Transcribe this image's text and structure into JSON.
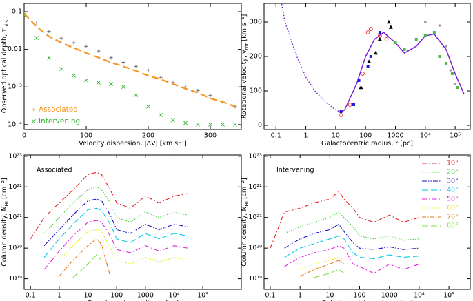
{
  "chart_data": [
    {
      "type": "line",
      "xlabel": [
        "Velocity dispersion, |ΔV| [km s⁻¹]"
      ],
      "ylabel": [
        "Observed optical depth, τ",
        "obs"
      ],
      "xlim": [
        0,
        350
      ],
      "ylim": [
        7.4e-05,
        0.166
      ],
      "ylog": true,
      "xticks": [
        0,
        100,
        200,
        300
      ],
      "yticks": [
        {
          "value": 0.0001,
          "label": "10⁻⁴"
        },
        {
          "value": 0.001,
          "label": "10⁻³"
        },
        0.01,
        0.1
      ],
      "legend": "lower left",
      "x": [
        0,
        20,
        40,
        60,
        80,
        100,
        120,
        140,
        160,
        180,
        200,
        220,
        240,
        260,
        280,
        300,
        320,
        340
      ],
      "series": [
        {
          "name": "Associated",
          "color": "#f7941d",
          "marker": "+",
          "marker_color": "#666666",
          "values": [
            0.09,
            0.05,
            0.03,
            0.02,
            0.015,
            0.012,
            0.009,
            0.006,
            0.0045,
            0.0035,
            0.0028,
            0.0018,
            0.0013,
            0.001,
            0.0008,
            0.0006,
            0.0004,
            0.0003
          ]
        },
        {
          "name": "Intervening",
          "color": "#2db52d",
          "marker": "x",
          "values": [
            0.08,
            0.02,
            0.006,
            0.003,
            0.002,
            0.0015,
            0.0013,
            0.0012,
            0.001,
            0.0006,
            0.0003,
            0.00018,
            0.00013,
            0.00011,
            0.0001,
            0.0001,
            0.0001,
            0.0001
          ]
        },
        {
          "color": "#f7941d",
          "dash": "10,5",
          "width": 2.2,
          "values": [
            0.09,
            0.04,
            0.022,
            0.015,
            0.011,
            0.008,
            0.006,
            0.0045,
            0.0035,
            0.0027,
            0.002,
            0.0016,
            0.0012,
            0.0009,
            0.0007,
            0.0005,
            0.0004,
            0.0003
          ]
        }
      ]
    },
    {
      "type": "line",
      "xlabel": [
        "Galactocentric radius, r [pc]"
      ],
      "ylabel": [
        "Rotational velocity, v",
        "rot",
        " [km s⁻¹]"
      ],
      "xlim": [
        0.04,
        320000
      ],
      "xlog": true,
      "ylim": [
        -12,
        354
      ],
      "xticks": [
        0.1,
        1,
        10,
        100,
        1000,
        {
          "value": 10000,
          "label": "10⁴"
        },
        {
          "value": 100000,
          "label": "10⁵"
        }
      ],
      "yticks": [
        0,
        100,
        200,
        300
      ],
      "series": [
        {
          "color": "#7a1fd6",
          "dash": "1.5,2.5",
          "width": 1.5,
          "x": [
            0.15,
            0.2,
            0.5,
            1,
            2,
            5,
            10,
            15
          ],
          "values": [
            360,
            300,
            200,
            140,
            100,
            65,
            45,
            38
          ]
        },
        {
          "color": "#7a1fd6",
          "width": 1.5,
          "x": [
            15,
            20,
            50,
            100,
            200,
            400,
            1000,
            2000,
            5000,
            10000,
            20000,
            50000,
            100000,
            200000
          ],
          "values": [
            38,
            45,
            120,
            200,
            250,
            270,
            240,
            210,
            230,
            260,
            265,
            220,
            150,
            90
          ]
        },
        {
          "color": "#000000",
          "marker": "triangle",
          "x": [
            70,
            130,
            220,
            300,
            600,
            700
          ],
          "values": [
            110,
            185,
            210,
            250,
            300,
            285
          ]
        },
        {
          "color": "#1a1ae0",
          "marker": "square",
          "x": [
            15,
            40,
            60,
            120,
            150,
            300
          ],
          "values": [
            40,
            60,
            130,
            170,
            200,
            270
          ]
        },
        {
          "color": "#e82020",
          "marker": "circle",
          "x": [
            15,
            30,
            80,
            120,
            150,
            300,
            500
          ],
          "values": [
            30,
            60,
            150,
            270,
            280,
            260,
            250
          ]
        },
        {
          "color": "#4cb84c",
          "marker": "square",
          "x": [
            1000,
            2000,
            5000,
            10000,
            20000,
            30000,
            50000,
            80000,
            120000
          ],
          "values": [
            240,
            220,
            250,
            260,
            270,
            200,
            180,
            150,
            110
          ]
        },
        {
          "color": "#999999",
          "marker": "dot",
          "x": [
            10000,
            30000,
            50000,
            70000,
            100000
          ],
          "values": [
            300,
            290,
            230,
            160,
            120
          ]
        }
      ]
    },
    {
      "type": "line",
      "annotation": "Associated",
      "xlabel": [
        "Galactocentric radius, r [pc]"
      ],
      "ylabel": [
        "Column density, N",
        "HI",
        " [cm⁻²]"
      ],
      "xlim": [
        0.06,
        2200000
      ],
      "xlog": true,
      "ylim": [
        4.5e+18,
        1.1e+23
      ],
      "ylog": true,
      "xticks": [
        0.1,
        1,
        10,
        100,
        1000,
        {
          "value": 10000,
          "label": "10⁴"
        },
        {
          "value": 100000,
          "label": "10⁵"
        }
      ],
      "yticks": [
        {
          "value": 1e+19,
          "label": "10¹⁹"
        },
        {
          "value": 1e+20,
          "label": "10²⁰"
        },
        {
          "value": 1e+21,
          "label": "10²¹"
        },
        {
          "value": 1e+22,
          "label": "10²²"
        },
        {
          "value": 1e+23,
          "label": "10²³"
        }
      ],
      "x": [
        0.1,
        0.3,
        1,
        3,
        10,
        20,
        30,
        60,
        100,
        300,
        1000,
        3000,
        10000,
        30000
      ],
      "series": [
        {
          "color": "#e82020",
          "dash": "7,3,1.5,3",
          "values": [
            2e+20,
            1e+21,
            3e+21,
            8e+21,
            2.5e+22,
            3e+22,
            2.5e+22,
            8e+21,
            3e+21,
            2e+21,
            5e+21,
            3e+21,
            5e+21,
            6e+21
          ]
        },
        {
          "color": "#33cc33",
          "dash": "1.5,2",
          "values": [
            null,
            3e+20,
            1e+21,
            3e+21,
            8e+21,
            1e+22,
            8e+21,
            3e+21,
            1e+21,
            7e+20,
            1.5e+21,
            1e+21,
            1.5e+21,
            1.2e+21
          ]
        },
        {
          "color": "#1010c0",
          "dash": "7,2,1.5,2,1.5,2",
          "values": [
            null,
            1.2e+20,
            4e+20,
            1.2e+21,
            3.5e+21,
            4e+21,
            3.5e+21,
            1.2e+21,
            4e+20,
            3e+20,
            6e+20,
            4e+20,
            6e+20,
            5e+20
          ]
        },
        {
          "color": "#00c8e8",
          "dash": "9,4",
          "values": [
            null,
            5e+19,
            2e+20,
            6e+20,
            1.8e+21,
            2e+21,
            1.7e+21,
            6e+20,
            2e+20,
            1.5e+20,
            3e+20,
            2e+20,
            3e+20,
            2.5e+20
          ]
        },
        {
          "color": "#e020e0",
          "dash": "7,3,1.5,3",
          "values": [
            null,
            2e+19,
            8e+19,
            2.5e+20,
            7e+20,
            8e+20,
            7e+20,
            2.5e+20,
            9e+19,
            7e+19,
            1.2e+20,
            8e+19,
            1.2e+20,
            1e+20
          ]
        },
        {
          "color": "#e6e600",
          "dash": "1.5,2",
          "values": [
            null,
            null,
            4e+19,
            1.2e+20,
            3.5e+20,
            4e+20,
            3.5e+20,
            1e+20,
            4e+19,
            3e+19,
            5e+19,
            3.5e+19,
            5e+19,
            4e+19
          ]
        },
        {
          "color": "#e07a10",
          "dash": "6,2,1.5,2",
          "values": [
            null,
            null,
            1.2e+19,
            4e+19,
            1.2e+20,
            2e+20,
            1.3e+20,
            1.2e+19,
            null,
            null,
            null,
            null,
            null,
            null
          ]
        },
        {
          "color": "#80e040",
          "dash": "9,4",
          "values": [
            null,
            null,
            null,
            1.1e+19,
            3e+19,
            6e+19,
            4e+19,
            null,
            null,
            null,
            null,
            null,
            null,
            null
          ]
        }
      ]
    },
    {
      "type": "line",
      "annotation": "Intervening",
      "xlabel": [
        "Galactocentric radius, r [pc]"
      ],
      "ylabel": [
        "Column density, N",
        "HI",
        " [cm⁻²]"
      ],
      "xlim": [
        0.062,
        520000
      ],
      "xlog": true,
      "ylim": [
        4.5e+18,
        1.1e+23
      ],
      "ylog": true,
      "xticks": [
        0.1,
        1,
        10,
        100,
        1000,
        {
          "value": 10000,
          "label": "10⁴"
        },
        {
          "value": 100000,
          "label": "10⁵"
        }
      ],
      "yticks": [
        {
          "value": 1e+19,
          "label": "10¹⁹"
        },
        {
          "value": 1e+20,
          "label": "10²⁰"
        },
        {
          "value": 1e+21,
          "label": "10²¹"
        },
        {
          "value": 1e+22,
          "label": "10²²"
        },
        {
          "value": 1e+23,
          "label": "10²³"
        }
      ],
      "legend": "upper right",
      "x": [
        0.1,
        0.3,
        1,
        3,
        10,
        20,
        30,
        60,
        100,
        300,
        1000,
        3000,
        10000,
        30000
      ],
      "series": [
        {
          "name": "10°",
          "color": "#e82020",
          "dash": "7,3,1.5,3",
          "values": [
            1e+20,
            1.5e+21,
            2e+21,
            3e+21,
            4e+21,
            7e+21,
            4e+21,
            2e+21,
            1e+21,
            7e+20,
            1.2e+21,
            7e+20,
            1e+21,
            null
          ]
        },
        {
          "name": "20°",
          "color": "#33cc33",
          "dash": "1.5,2",
          "values": [
            null,
            3e+20,
            5e+20,
            7e+20,
            1e+21,
            1.5e+21,
            1e+21,
            5e+20,
            2.5e+20,
            2e+20,
            2.5e+20,
            1.8e+20,
            2e+20,
            null
          ]
        },
        {
          "name": "30°",
          "color": "#1010c0",
          "dash": "7,2,1.5,2,1.5,2",
          "values": [
            null,
            1e+20,
            2e+20,
            3e+20,
            4e+20,
            6e+20,
            3.5e+20,
            1.5e+20,
            1e+20,
            9e+19,
            1.1e+20,
            9e+19,
            1e+20,
            null
          ]
        },
        {
          "name": "40°",
          "color": "#00c8e8",
          "dash": "9,4",
          "values": [
            null,
            5e+19,
            1e+20,
            1.4e+20,
            2e+20,
            2.5e+20,
            2e+20,
            7e+19,
            5e+19,
            4.5e+19,
            6e+19,
            5e+19,
            5.5e+19,
            null
          ]
        },
        {
          "name": "50°",
          "color": "#e020e0",
          "dash": "7,3,1.5,3",
          "values": [
            null,
            2.5e+19,
            5e+19,
            7e+19,
            9e+19,
            1.2e+20,
            1e+20,
            3e+19,
            2.5e+19,
            1.5e+19,
            3e+19,
            2e+19,
            3e+19,
            null
          ]
        },
        {
          "name": "60°",
          "color": "#e6e600",
          "dash": "1.5,2",
          "values": [
            null,
            null,
            2e+19,
            3e+19,
            4e+19,
            5e+19,
            4e+19,
            null,
            null,
            null,
            null,
            null,
            null,
            null
          ]
        },
        {
          "name": "70°",
          "color": "#e07a10",
          "dash": "6,2,1.5,2",
          "values": [
            null,
            null,
            1.2e+19,
            2e+19,
            3e+19,
            4e+19,
            3e+19,
            null,
            null,
            null,
            null,
            null,
            null,
            null
          ]
        },
        {
          "name": "80°",
          "color": "#80e040",
          "dash": "9,4",
          "values": [
            null,
            null,
            null,
            1.1e+19,
            1.5e+19,
            2e+19,
            1.5e+19,
            null,
            null,
            null,
            null,
            null,
            null,
            null
          ]
        }
      ]
    }
  ]
}
